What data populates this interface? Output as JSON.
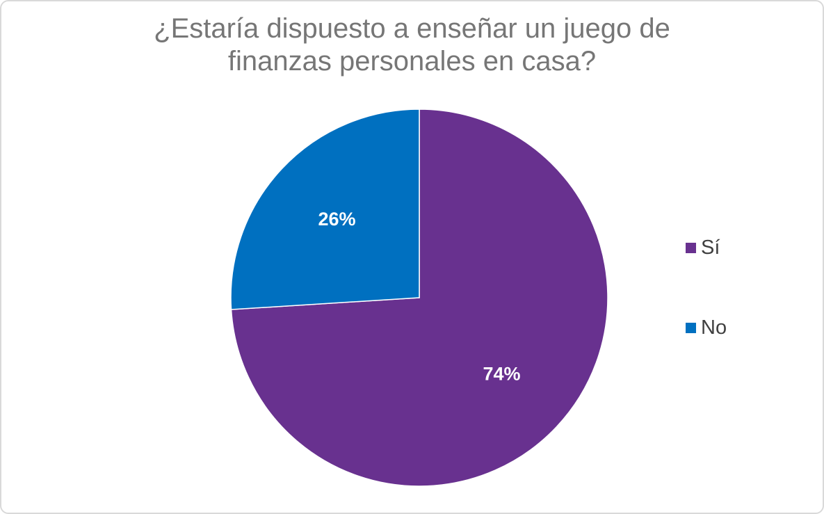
{
  "chart_data": {
    "type": "pie",
    "title_lines": [
      "¿Estaría dispuesto a enseñar un juego de",
      "finanzas personales en casa?"
    ],
    "slices": [
      {
        "label": "Sí",
        "value": 74,
        "data_label": "74%",
        "color": "#68318f"
      },
      {
        "label": "No",
        "value": 26,
        "data_label": "26%",
        "color": "#0070c0"
      }
    ],
    "legend_position": "right"
  }
}
